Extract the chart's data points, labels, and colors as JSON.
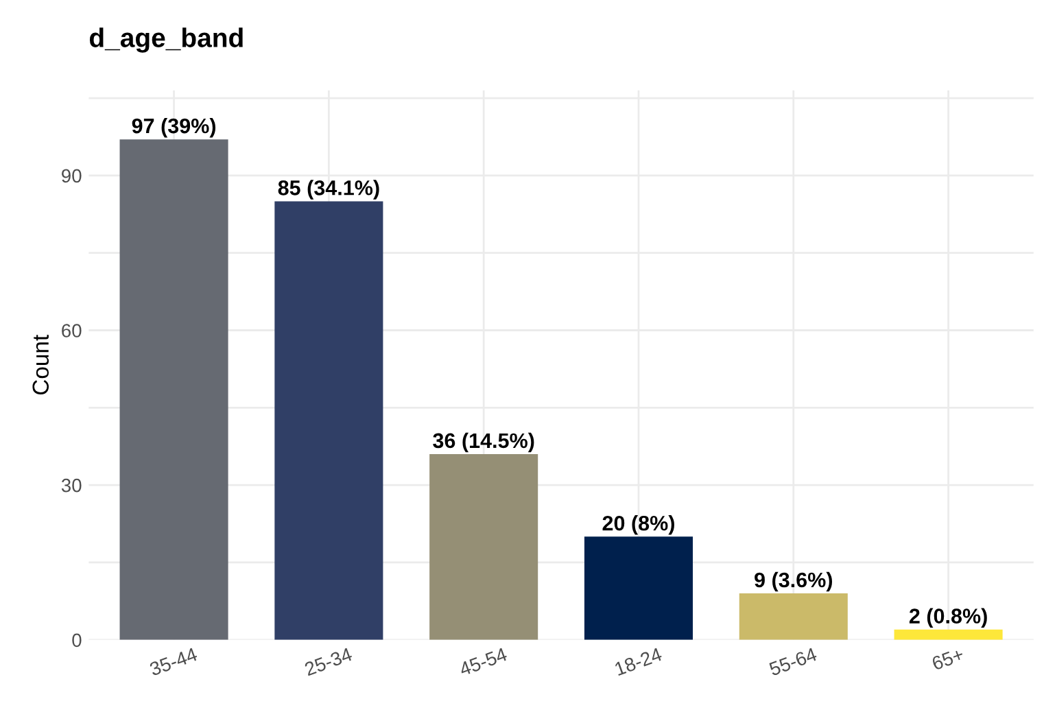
{
  "chart_data": {
    "type": "bar",
    "title": "d_age_band",
    "ylabel": "Count",
    "categories": [
      "35-44",
      "25-34",
      "45-54",
      "18-24",
      "55-64",
      "65+"
    ],
    "values": [
      97,
      85,
      36,
      20,
      9,
      2
    ],
    "colors": [
      "#666a72",
      "#303f66",
      "#958f75",
      "#00204d",
      "#cbba69",
      "#fde73a"
    ],
    "value_labels": [
      "97 (39%)",
      "85 (34.1%)",
      "36 (14.5%)",
      "20 (8%)",
      "9 (3.6%)",
      "2 (0.8%)"
    ],
    "ylim": [
      0,
      106.5
    ],
    "yticks": [
      0,
      {
        "value": 15,
        "label": null
      },
      30,
      {
        "value": 45,
        "label": null
      },
      60,
      {
        "value": 75,
        "label": null
      },
      90,
      {
        "value": 105,
        "label": null
      }
    ],
    "grid": true
  }
}
